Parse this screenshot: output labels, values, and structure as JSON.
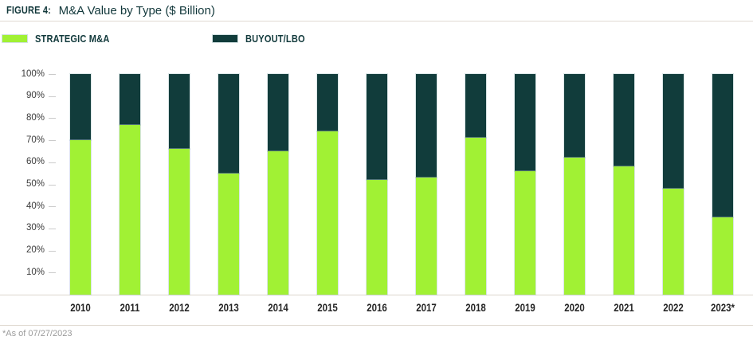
{
  "header": {
    "figure_label": "FIGURE 4:",
    "title": "M&A Value by Type ($ Billion)"
  },
  "legend": [
    {
      "label": "STRATEGIC M&A",
      "color": "#A1F134"
    },
    {
      "label": "BUYOUT/LBO",
      "color": "#113C3B"
    }
  ],
  "footnote": "*As of 07/27/2023",
  "colors": {
    "strategic_green": "#A1F134",
    "buyout_dark_teal": "#113C3B",
    "rule_line": "#DDD6CC",
    "footnote_gray": "#9B9B9B"
  },
  "chart_data": {
    "type": "bar",
    "stacked": true,
    "unit": "percent_of_total",
    "title": "M&A Value by Type ($ Billion)",
    "categories": [
      "2010",
      "2011",
      "2012",
      "2013",
      "2014",
      "2015",
      "2016",
      "2017",
      "2018",
      "2019",
      "2020",
      "2021",
      "2022",
      "2023*"
    ],
    "series": [
      {
        "name": "STRATEGIC M&A",
        "color": "#A1F134",
        "values": [
          70,
          77,
          66,
          55,
          65,
          74,
          52,
          53,
          71,
          56,
          62,
          58,
          48,
          35
        ]
      },
      {
        "name": "BUYOUT/LBO",
        "color": "#113C3B",
        "values": [
          30,
          23,
          34,
          45,
          35,
          26,
          48,
          47,
          29,
          44,
          38,
          42,
          52,
          65
        ]
      }
    ],
    "yticks": [
      "100%",
      "90%",
      "80%",
      "70%",
      "60%",
      "50%",
      "40%",
      "30%",
      "20%",
      "10%"
    ],
    "ylim": [
      0,
      100
    ],
    "grid": false,
    "legend_position": "top",
    "xlabel": "",
    "ylabel": ""
  }
}
